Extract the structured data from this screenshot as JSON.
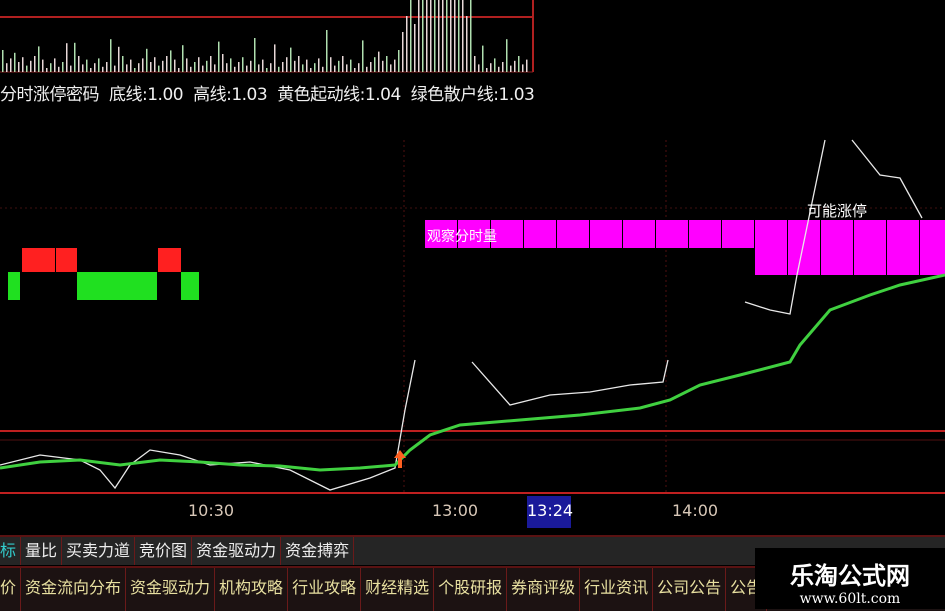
{
  "indicator": {
    "name": "分时涨停密码",
    "items": [
      "底线:1.00",
      "高线:1.03",
      "黄色起动线:1.04",
      "绿色散户线:1.03"
    ]
  },
  "labels": {
    "magenta": "观察分时量",
    "signal": "可能涨停"
  },
  "time_axis": {
    "ticks": [
      "10:30",
      "13:00",
      "14:00"
    ],
    "cursor": "13:24"
  },
  "tabs_row1": [
    "标",
    "量比",
    "买卖力道",
    "竞价图",
    "资金驱动力",
    "资金搏弈"
  ],
  "tabs_row2": [
    "价",
    "资金流向分布",
    "资金驱动力",
    "机构攻略",
    "行业攻略",
    "财经精选",
    "个股研报",
    "券商评级",
    "行业资讯",
    "公司公告",
    "公告"
  ],
  "watermark": {
    "title": "乐淘公式网",
    "url": "www.60lt.com"
  },
  "colors": {
    "up": "#ff2020",
    "down": "#20e020",
    "magenta": "#ff00ff",
    "price_line": "#e8e8e8",
    "avg_line": "#40d040",
    "grid": "#a01818"
  }
}
